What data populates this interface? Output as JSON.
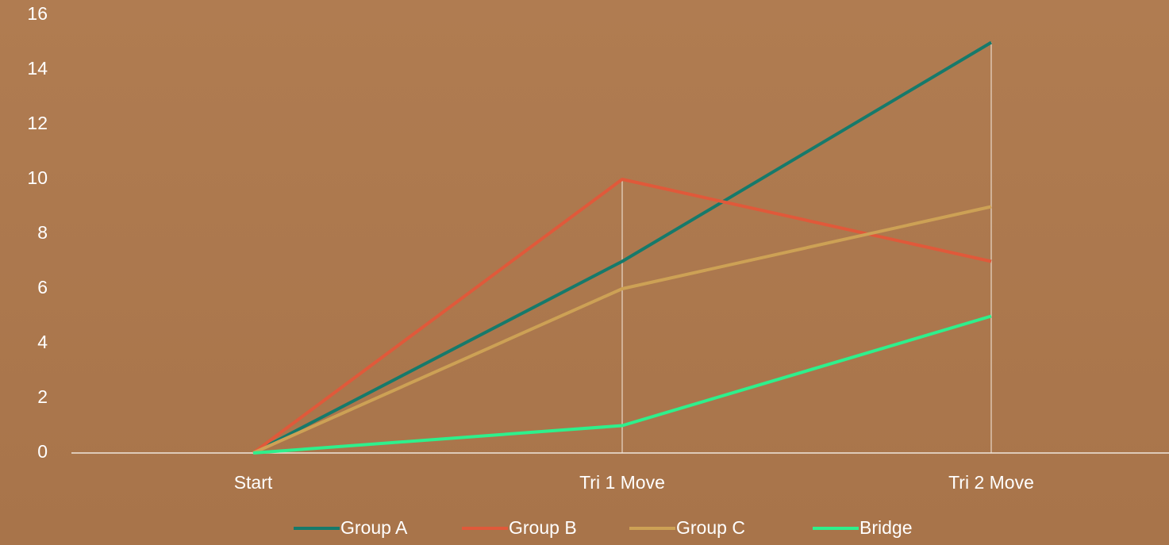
{
  "chart_data": {
    "type": "line",
    "categories": [
      "Start",
      "Tri 1 Move",
      "Tri 2 Move"
    ],
    "series": [
      {
        "name": "Group A",
        "color": "#167a6b",
        "values": [
          0,
          7,
          15
        ]
      },
      {
        "name": "Group B",
        "color": "#e0593a",
        "values": [
          0,
          10,
          7
        ]
      },
      {
        "name": "Group C",
        "color": "#cda155",
        "values": [
          0,
          6,
          9
        ]
      },
      {
        "name": "Bridge",
        "color": "#2ef08c",
        "values": [
          0,
          1,
          5
        ]
      }
    ],
    "ylim": [
      0,
      16
    ],
    "yticks": [
      0,
      2,
      4,
      6,
      8,
      10,
      12,
      14,
      16
    ],
    "legend": "bottom"
  }
}
